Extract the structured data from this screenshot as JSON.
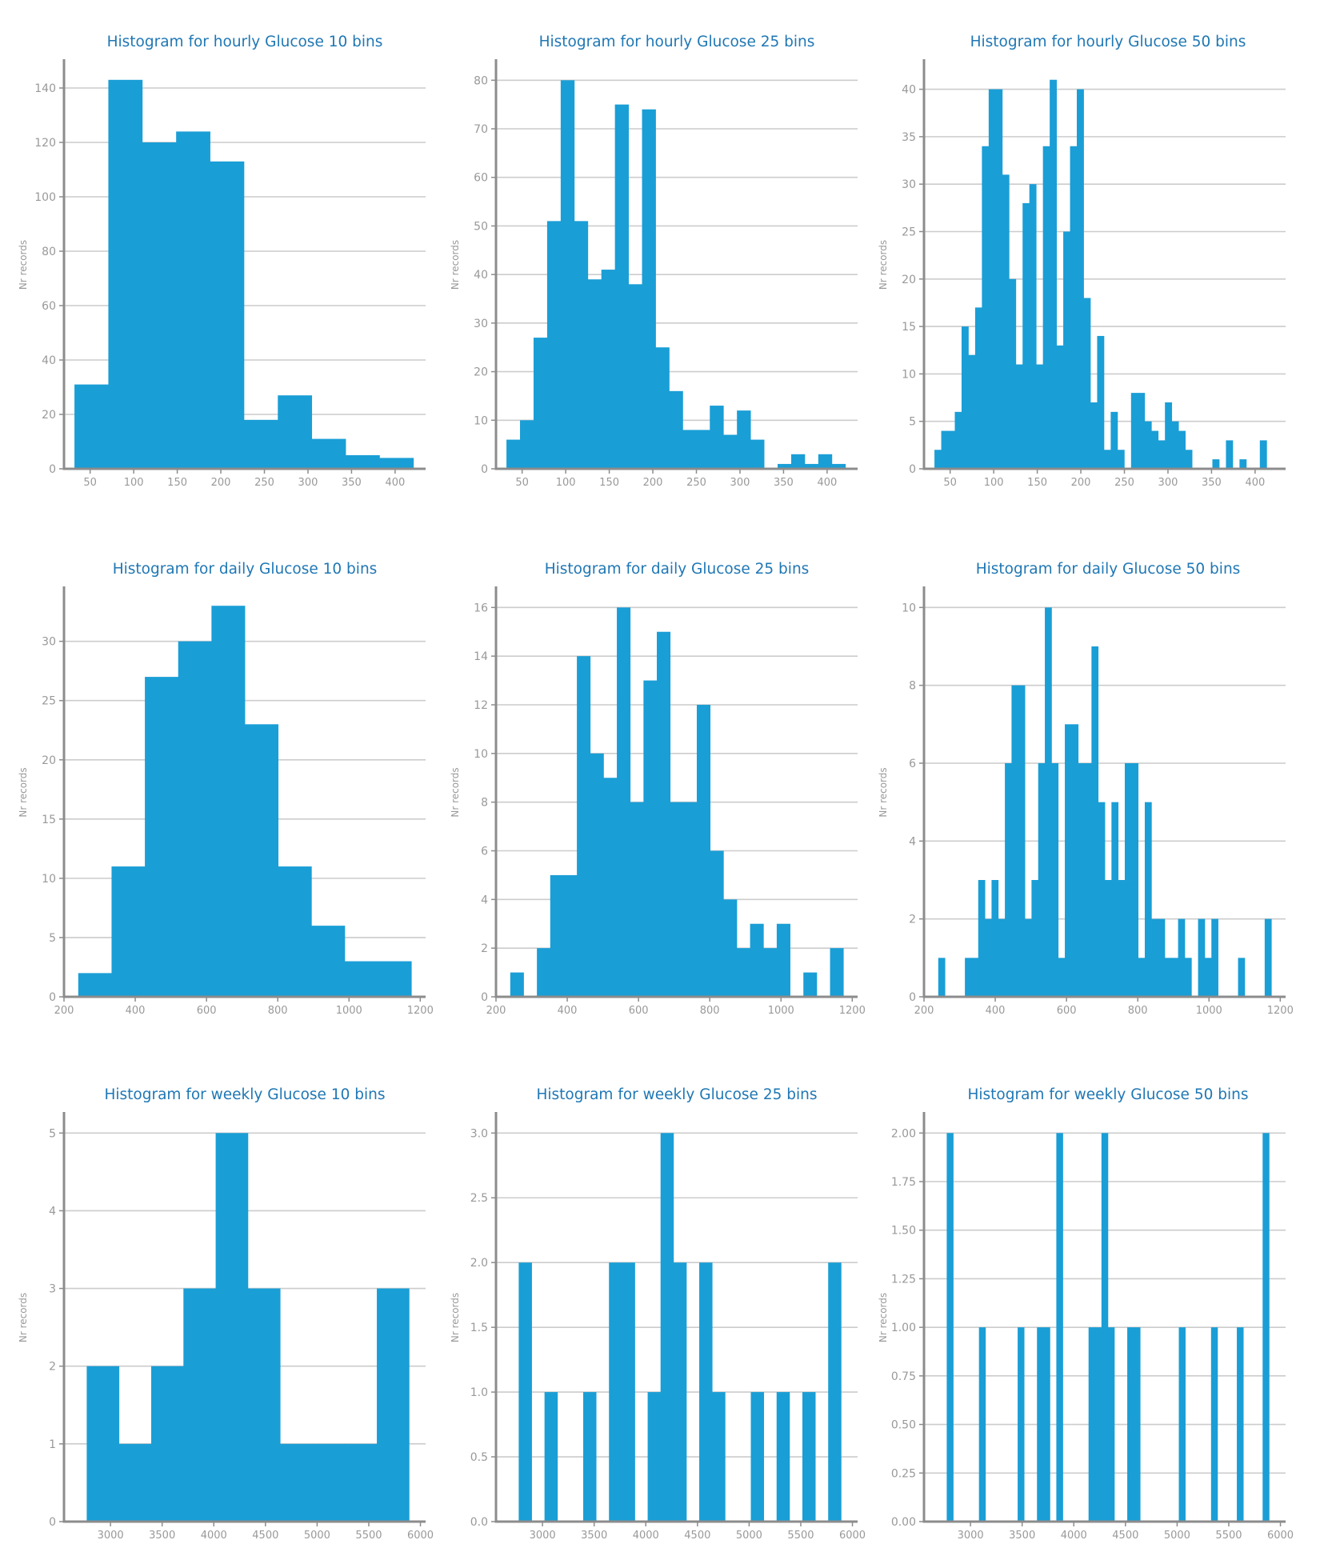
{
  "colors": {
    "bar": "#1a9ed6",
    "title": "#1f77b4",
    "axis": "#8c8c8c",
    "grid": "#cccccc",
    "tick_text": "#999999"
  },
  "chart_data": [
    {
      "type": "bar",
      "title": "Histogram for hourly Glucose 10 bins",
      "xlabel": "",
      "ylabel": "Nr records",
      "bin_start": 32,
      "bin_width": 38.9,
      "values": [
        31,
        143,
        120,
        124,
        113,
        18,
        27,
        11,
        5,
        4
      ],
      "xlim": [
        20,
        435
      ],
      "ylim": [
        0,
        150
      ],
      "xticks": [
        50,
        100,
        150,
        200,
        250,
        300,
        350,
        400
      ],
      "yticks": [
        0,
        20,
        40,
        60,
        80,
        100,
        120,
        140
      ],
      "ytick_labels": [
        "0",
        "20",
        "40",
        "60",
        "80",
        "100",
        "120",
        "140"
      ],
      "grid": "horizontal"
    },
    {
      "type": "bar",
      "title": "Histogram for hourly Glucose 25 bins",
      "xlabel": "",
      "ylabel": "Nr records",
      "bin_start": 32,
      "bin_width": 15.56,
      "values": [
        6,
        10,
        27,
        51,
        80,
        51,
        39,
        41,
        75,
        38,
        74,
        25,
        16,
        8,
        8,
        13,
        7,
        12,
        6,
        0,
        1,
        3,
        1,
        3,
        1
      ],
      "xlim": [
        20,
        435
      ],
      "ylim": [
        0,
        84
      ],
      "xticks": [
        50,
        100,
        150,
        200,
        250,
        300,
        350,
        400
      ],
      "yticks": [
        0,
        10,
        20,
        30,
        40,
        50,
        60,
        70,
        80
      ],
      "ytick_labels": [
        "0",
        "10",
        "20",
        "30",
        "40",
        "50",
        "60",
        "70",
        "80"
      ],
      "grid": "horizontal"
    },
    {
      "type": "bar",
      "title": "Histogram for hourly Glucose 50 bins",
      "xlabel": "",
      "ylabel": "Nr records",
      "bin_start": 32,
      "bin_width": 7.78,
      "values": [
        2,
        4,
        4,
        6,
        15,
        12,
        17,
        34,
        40,
        40,
        31,
        20,
        11,
        28,
        30,
        11,
        34,
        41,
        13,
        25,
        34,
        40,
        18,
        7,
        14,
        2,
        6,
        2,
        0,
        8,
        8,
        5,
        4,
        3,
        7,
        5,
        4,
        2,
        0,
        0,
        0,
        1,
        0,
        3,
        0,
        1,
        0,
        0,
        3,
        0
      ],
      "xlim": [
        20,
        435
      ],
      "ylim": [
        0,
        43
      ],
      "xticks": [
        50,
        100,
        150,
        200,
        250,
        300,
        350,
        400
      ],
      "yticks": [
        0,
        5,
        10,
        15,
        20,
        25,
        30,
        35,
        40
      ],
      "ytick_labels": [
        "0",
        "5",
        "10",
        "15",
        "20",
        "25",
        "30",
        "35",
        "40"
      ],
      "grid": "horizontal"
    },
    {
      "type": "bar",
      "title": "Histogram for daily Glucose 10 bins",
      "xlabel": "",
      "ylabel": "Nr records",
      "bin_start": 240,
      "bin_width": 93.5,
      "values": [
        2,
        11,
        27,
        30,
        33,
        23,
        11,
        6,
        3,
        3
      ],
      "xlim": [
        200,
        1215
      ],
      "ylim": [
        0,
        34.5
      ],
      "xticks": [
        200,
        400,
        600,
        800,
        1000,
        1200
      ],
      "yticks": [
        0,
        5,
        10,
        15,
        20,
        25,
        30
      ],
      "ytick_labels": [
        "0",
        "5",
        "10",
        "15",
        "20",
        "25",
        "30"
      ],
      "grid": "horizontal"
    },
    {
      "type": "bar",
      "title": "Histogram for daily Glucose 25 bins",
      "xlabel": "",
      "ylabel": "Nr records",
      "bin_start": 240,
      "bin_width": 37.4,
      "values": [
        1,
        0,
        2,
        5,
        5,
        14,
        10,
        9,
        16,
        8,
        13,
        15,
        8,
        8,
        12,
        6,
        4,
        2,
        3,
        2,
        3,
        0,
        1,
        0,
        2
      ],
      "xlim": [
        200,
        1215
      ],
      "ylim": [
        0,
        16.8
      ],
      "xticks": [
        200,
        400,
        600,
        800,
        1000,
        1200
      ],
      "yticks": [
        0,
        2,
        4,
        6,
        8,
        10,
        12,
        14,
        16
      ],
      "ytick_labels": [
        "0",
        "2",
        "4",
        "6",
        "8",
        "10",
        "12",
        "14",
        "16"
      ],
      "grid": "horizontal"
    },
    {
      "type": "bar",
      "title": "Histogram for daily Glucose 50 bins",
      "xlabel": "",
      "ylabel": "Nr records",
      "bin_start": 240,
      "bin_width": 18.7,
      "values": [
        1,
        0,
        0,
        0,
        1,
        1,
        3,
        2,
        3,
        2,
        6,
        8,
        8,
        2,
        3,
        6,
        10,
        6,
        1,
        7,
        7,
        6,
        6,
        9,
        5,
        3,
        5,
        3,
        6,
        6,
        1,
        5,
        2,
        2,
        1,
        1,
        2,
        1,
        0,
        2,
        1,
        2,
        0,
        0,
        0,
        1,
        0,
        0,
        0,
        2
      ],
      "xlim": [
        200,
        1215
      ],
      "ylim": [
        0,
        10.5
      ],
      "xticks": [
        200,
        400,
        600,
        800,
        1000,
        1200
      ],
      "yticks": [
        0,
        2,
        4,
        6,
        8,
        10
      ],
      "ytick_labels": [
        "0",
        "2",
        "4",
        "6",
        "8",
        "10"
      ],
      "grid": "horizontal"
    },
    {
      "type": "bar",
      "title": "Histogram for weekly Glucose 10 bins",
      "xlabel": "",
      "ylabel": "Nr records",
      "bin_start": 2770,
      "bin_width": 312,
      "values": [
        2,
        1,
        2,
        3,
        5,
        3,
        1,
        1,
        1,
        3
      ],
      "xlim": [
        2550,
        6050
      ],
      "ylim": [
        0,
        5.25
      ],
      "xticks": [
        3000,
        3500,
        4000,
        4500,
        5000,
        5500,
        6000
      ],
      "yticks": [
        0,
        1,
        2,
        3,
        4,
        5
      ],
      "ytick_labels": [
        "0",
        "1",
        "2",
        "3",
        "4",
        "5"
      ],
      "grid": "horizontal"
    },
    {
      "type": "bar",
      "title": "Histogram for weekly Glucose 25 bins",
      "xlabel": "",
      "ylabel": "Nr records",
      "bin_start": 2770,
      "bin_width": 124.8,
      "values": [
        2,
        0,
        1,
        0,
        0,
        1,
        0,
        2,
        2,
        0,
        1,
        3,
        2,
        0,
        2,
        1,
        0,
        0,
        1,
        0,
        1,
        0,
        1,
        0,
        2
      ],
      "xlim": [
        2550,
        6050
      ],
      "ylim": [
        0,
        3.15
      ],
      "xticks": [
        3000,
        3500,
        4000,
        4500,
        5000,
        5500,
        6000
      ],
      "yticks": [
        0,
        0.5,
        1,
        1.5,
        2,
        2.5,
        3
      ],
      "ytick_labels": [
        "0.0",
        "0.5",
        "1.0",
        "1.5",
        "2.0",
        "2.5",
        "3.0"
      ],
      "grid": "horizontal"
    },
    {
      "type": "bar",
      "title": "Histogram for weekly Glucose 50 bins",
      "xlabel": "",
      "ylabel": "Nr records",
      "bin_start": 2770,
      "bin_width": 62.4,
      "values": [
        2,
        0,
        0,
        0,
        0,
        1,
        0,
        0,
        0,
        0,
        0,
        1,
        0,
        0,
        1,
        1,
        0,
        2,
        0,
        0,
        0,
        0,
        1,
        1,
        2,
        1,
        0,
        0,
        1,
        1,
        0,
        0,
        0,
        0,
        0,
        0,
        1,
        0,
        0,
        0,
        0,
        1,
        0,
        0,
        0,
        1,
        0,
        0,
        0,
        2
      ],
      "xlim": [
        2550,
        6050
      ],
      "ylim": [
        0,
        2.1
      ],
      "xticks": [
        3000,
        3500,
        4000,
        4500,
        5000,
        5500,
        6000
      ],
      "yticks": [
        0,
        0.25,
        0.5,
        0.75,
        1,
        1.25,
        1.5,
        1.75,
        2
      ],
      "ytick_labels": [
        "0.00",
        "0.25",
        "0.50",
        "0.75",
        "1.00",
        "1.25",
        "1.50",
        "1.75",
        "2.00"
      ],
      "grid": "horizontal"
    }
  ]
}
